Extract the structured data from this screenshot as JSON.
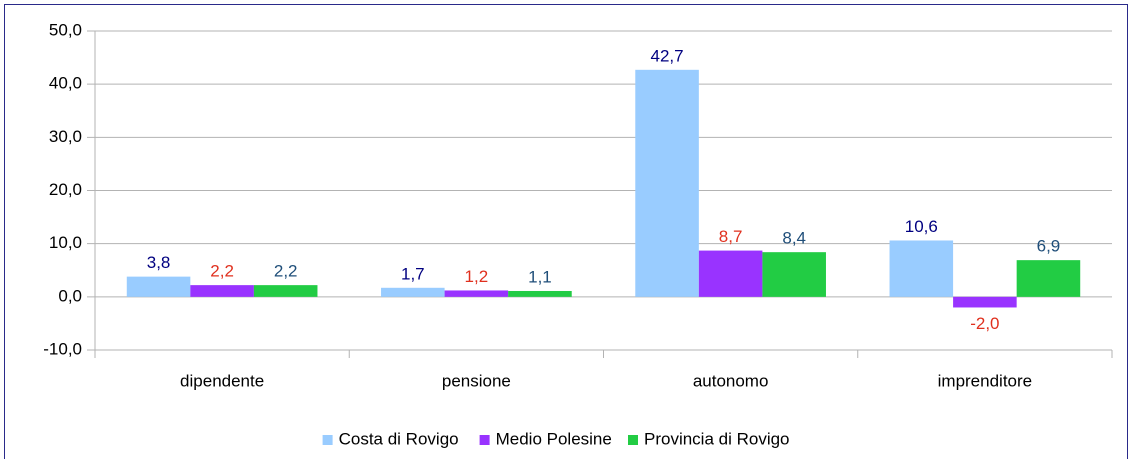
{
  "chart_data": {
    "type": "bar",
    "categories": [
      "dipendente",
      "pensione",
      "autonomo",
      "imprenditore"
    ],
    "series": [
      {
        "name": "Costa di Rovigo",
        "color": "#99ccff",
        "label_color": "#000080",
        "values": [
          3.8,
          1.7,
          42.7,
          10.6
        ],
        "value_labels": [
          "3,8",
          "1,7",
          "42,7",
          "10,6"
        ]
      },
      {
        "name": "Medio Polesine",
        "color": "#9933ff",
        "label_color": "#e0301e",
        "values": [
          2.2,
          1.2,
          8.7,
          -2.0
        ],
        "value_labels": [
          "2,2",
          "1,2",
          "8,7",
          "-2,0"
        ]
      },
      {
        "name": "Provincia di Rovigo",
        "color": "#22cc44",
        "label_color": "#1f4e79",
        "values": [
          2.2,
          1.1,
          8.4,
          6.9
        ],
        "value_labels": [
          "2,2",
          "1,1",
          "8,4",
          "6,9"
        ]
      }
    ],
    "ylim": [
      -10,
      50
    ],
    "yticks": [
      {
        "value": -10,
        "label": "-10,0"
      },
      {
        "value": 0,
        "label": "0,0"
      },
      {
        "value": 10,
        "label": "10,0"
      },
      {
        "value": 20,
        "label": "20,0"
      },
      {
        "value": 30,
        "label": "30,0"
      },
      {
        "value": 40,
        "label": "40,0"
      },
      {
        "value": 50,
        "label": "50,0"
      }
    ],
    "grid": true,
    "legend": "bottom"
  }
}
